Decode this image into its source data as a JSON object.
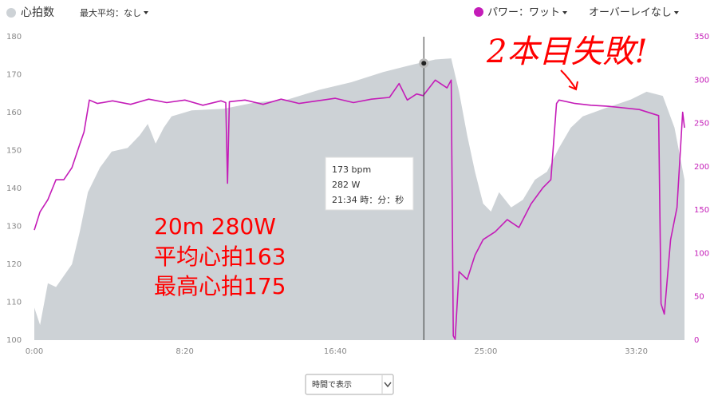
{
  "chart_data": {
    "type": "line",
    "controls": {
      "max_average": "最大平均：なし",
      "overlay": "オーバーレイなし",
      "view": "時間で表示"
    },
    "xlim": [
      0,
      2160
    ],
    "xticks": [
      {
        "value": 0,
        "label": "0:00"
      },
      {
        "value": 500,
        "label": "8:20"
      },
      {
        "value": 1000,
        "label": "16:40"
      },
      {
        "value": 1500,
        "label": "25:00"
      },
      {
        "value": 2000,
        "label": "33:20"
      }
    ],
    "ylim": [
      100,
      180
    ],
    "yticks": [
      100,
      110,
      120,
      130,
      140,
      150,
      160,
      170,
      180
    ],
    "y2lim": [
      0,
      350
    ],
    "y2ticks": [
      0,
      50,
      100,
      150,
      200,
      250,
      300,
      350
    ],
    "grid": false,
    "series": [
      {
        "name": "心拍数",
        "color": "#cdd2d6",
        "style": "area",
        "x": [
          0,
          19,
          45,
          72,
          125,
          151,
          178,
          218,
          257,
          310,
          350,
          377,
          403,
          430,
          456,
          523,
          629,
          735,
          841,
          947,
          1053,
          1159,
          1265,
          1332,
          1385,
          1411,
          1438,
          1464,
          1491,
          1517,
          1544,
          1584,
          1623,
          1663,
          1703,
          1743,
          1782,
          1822,
          1902,
          1981,
          2034,
          2088,
          2127,
          2160
        ],
        "values": [
          108.6,
          104,
          115,
          114,
          120,
          128.6,
          139,
          145.5,
          149.7,
          150.7,
          154,
          157,
          151.8,
          156,
          159,
          160.6,
          161,
          162.7,
          163.4,
          166,
          168,
          170.7,
          172.8,
          174,
          174.3,
          165.5,
          154,
          144.4,
          136,
          133.9,
          139,
          135,
          137,
          142.3,
          144.4,
          150.7,
          156,
          159,
          161.3,
          163.4,
          165.5,
          164.4,
          156,
          142.3
        ]
      },
      {
        "name": "パワー：ワット",
        "color": "#c41cb8",
        "axis": "y2",
        "x": [
          0,
          19,
          45,
          72,
          98,
          125,
          151,
          165,
          183,
          210,
          260,
          320,
          380,
          440,
          500,
          560,
          620,
          636,
          642,
          648,
          700,
          760,
          820,
          880,
          940,
          1000,
          1060,
          1120,
          1180,
          1212,
          1239,
          1270,
          1292,
          1332,
          1371,
          1385,
          1392,
          1398,
          1411,
          1438,
          1464,
          1491,
          1531,
          1571,
          1610,
          1650,
          1690,
          1716,
          1735,
          1743,
          1796,
          1849,
          1900,
          1955,
          2010,
          2074,
          2082,
          2093,
          2114,
          2135,
          2154,
          2160
        ],
        "values": [
          127,
          148,
          162,
          185,
          185,
          199,
          226,
          240,
          277,
          273,
          276,
          272,
          278,
          274,
          277,
          271,
          276,
          274,
          181,
          275,
          277,
          272,
          278,
          273,
          276,
          279,
          274,
          278,
          280,
          296,
          277,
          284,
          282,
          300,
          291,
          300,
          5,
          1,
          79,
          70,
          98,
          116,
          125,
          139,
          130,
          157,
          176,
          185,
          273,
          277,
          273,
          271,
          270,
          268,
          266,
          259,
          42,
          30,
          116,
          153,
          263,
          245
        ]
      }
    ],
    "cursor": {
      "x": 1294,
      "value": 173
    },
    "tooltip": [
      "173 bpm",
      "282 W",
      "21:34 時：分：秒"
    ],
    "annotations": [
      "20m 280W",
      "平均心拍163",
      "最高心拍175"
    ],
    "handwritten_note": "2本目失敗!"
  }
}
